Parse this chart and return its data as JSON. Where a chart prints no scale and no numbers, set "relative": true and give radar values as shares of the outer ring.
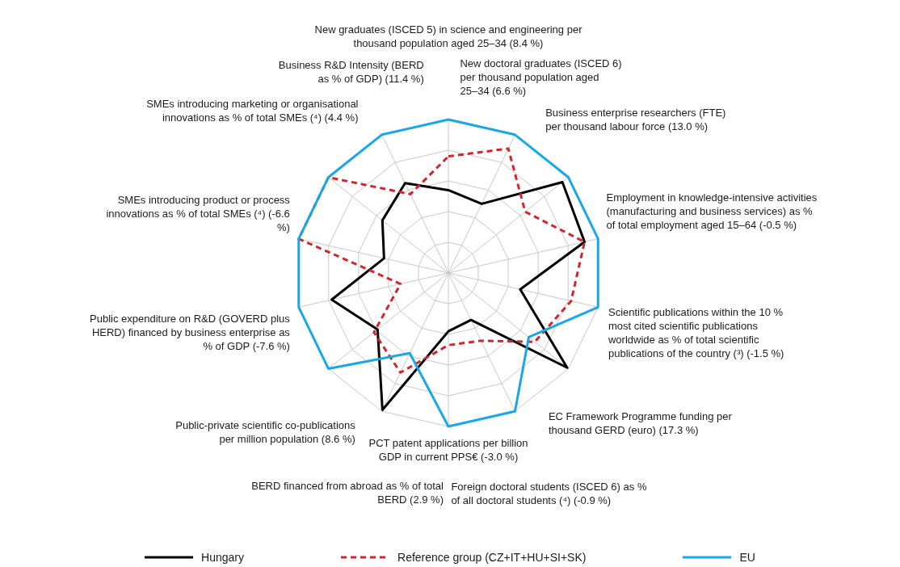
{
  "chart_data": {
    "type": "radar",
    "relative": true,
    "grid": true,
    "legend": "bottom",
    "marker": "none",
    "categories": [
      "New graduates (ISCED 5) in science and engineering per thousand population aged 25–34 (8.4 %)",
      "New doctoral graduates (ISCED 6) per thousand population aged 25–34 (6.6 %)",
      "Business enterprise researchers (FTE) per thousand labour force (13.0 %)",
      "Employment in knowledge-intensive activities (manufacturing and business services) as % of total employment aged 15–64 (-0.5 %)",
      "Scientific publications within the 10 % most cited scientific publications worldwide as % of total scientific publications of the country (³) (-1.5 %)",
      "EC Framework Programme funding per thousand GERD (euro) (17.3 %)",
      "Foreign doctoral students (ISCED 6) as % of all doctoral students (⁴) (-0.9 %)",
      "PCT patent applications per billion GDP in current PPS€ (-3.0 %)",
      "BERD financed from abroad as % of total BERD (2.9 %)",
      "Public-private scientific co-publications per million population (8.6 %)",
      "Public expenditure on R&D (GOVERD plus HERD) financed by business enterprise as % of GDP (-7.6 %)",
      "SMEs introducing product or process innovations as % of total SMEs (⁴) (-6.6 %)",
      "SMEs introducing marketing or organisational innovations as % of total SMEs (⁴) (4.4 %)",
      "Business R&D Intensity (BERD as % of GDP) (11.4 %)"
    ],
    "series": [
      {
        "name": "Hungary",
        "color": "#000000",
        "line_style": "solid",
        "values": [
          0.54,
          0.5,
          0.95,
          0.91,
          0.48,
          0.99,
          0.34,
          0.38,
          0.99,
          0.59,
          0.78,
          0.43,
          0.55,
          0.65
        ]
      },
      {
        "name": "Reference group (CZ+IT+HU+SI+SK)",
        "color": "#d0262e",
        "line_style": "dashed",
        "values": [
          0.76,
          0.9,
          0.64,
          0.91,
          0.82,
          0.72,
          0.49,
          0.47,
          0.72,
          0.62,
          0.32,
          1,
          1,
          0.57
        ]
      },
      {
        "name": "EU",
        "color": "#1aa7e6",
        "line_style": "solid",
        "values": [
          1,
          1,
          1,
          1,
          1,
          0.67,
          1,
          1,
          0.58,
          1,
          1,
          1,
          1,
          1
        ]
      }
    ]
  }
}
